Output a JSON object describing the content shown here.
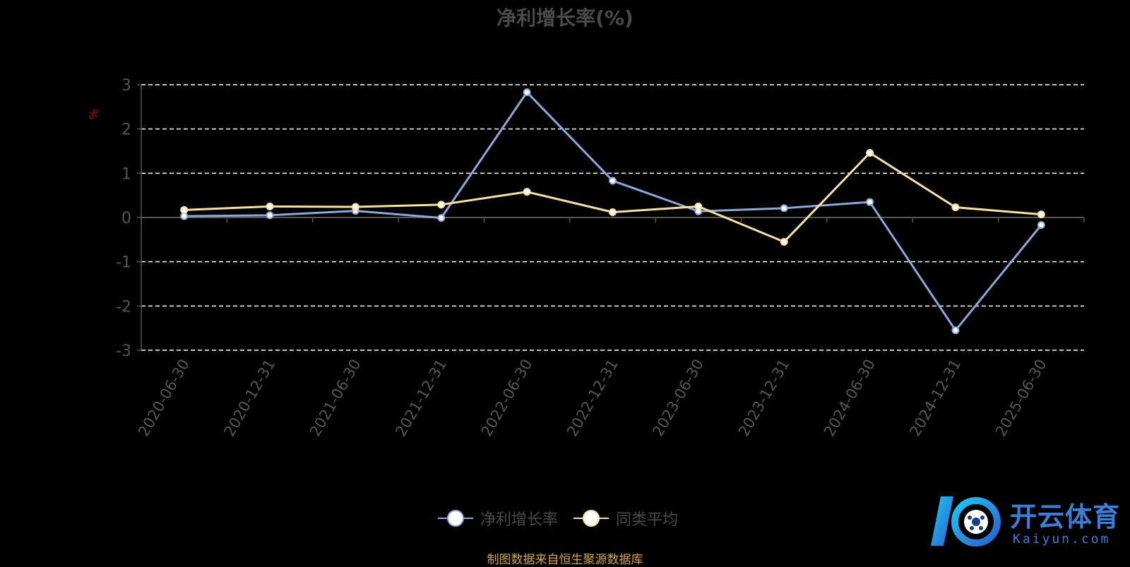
{
  "chart_data": {
    "type": "line",
    "title": "净利增长率(%)",
    "ylabel": "%",
    "xlabel": "",
    "ylim": [
      -3,
      3
    ],
    "yticks": [
      3,
      2,
      1,
      0,
      -1,
      -2,
      -3
    ],
    "grid": true,
    "legend_position": "bottom",
    "categories": [
      "2020-06-30",
      "2020-12-31",
      "2021-06-30",
      "2021-12-31",
      "2022-06-30",
      "2022-12-31",
      "2023-06-30",
      "2023-12-31",
      "2024-06-30",
      "2024-12-31",
      "2025-06-30"
    ],
    "series": [
      {
        "name": "净利增长率",
        "color": "#8aa8d8",
        "values": [
          0.03,
          0.05,
          0.15,
          -0.01,
          2.83,
          0.83,
          0.14,
          0.21,
          0.35,
          -2.55,
          -0.17
        ]
      },
      {
        "name": "同类平均",
        "color": "#f7e0a3",
        "values": [
          0.17,
          0.25,
          0.24,
          0.29,
          0.58,
          0.12,
          0.25,
          -0.55,
          1.46,
          0.23,
          0.07
        ]
      }
    ]
  },
  "source_note": "制图数据来自恒生聚源数据库",
  "watermark": {
    "text": "开云体育",
    "subtext": "Kaiyun.com"
  },
  "colors": {
    "background": "#000000",
    "title": "#4a4a4a",
    "axis": "#555555",
    "grid": "#ffffff",
    "ylabel": "#cc0000",
    "source_note": "#d4a44a"
  }
}
